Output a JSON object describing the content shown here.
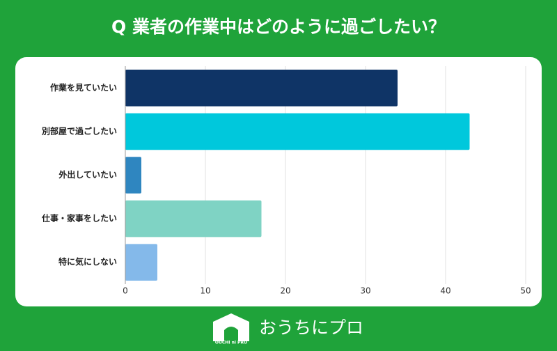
{
  "chart_data": {
    "type": "barh",
    "title": "Q 業者の作業中はどのように過ごしたい？",
    "categories": [
      "作業を見ていたい",
      "別部屋で過ごしたい",
      "外出していたい",
      "仕事・家事をしたい",
      "特に気にしない"
    ],
    "values": [
      34,
      43,
      2,
      17,
      4
    ],
    "colors": [
      "#0f3466",
      "#00c8dc",
      "#2f86c0",
      "#7fd3c4",
      "#84b9ea"
    ],
    "xlim": [
      0,
      50
    ],
    "xticks": [
      0,
      10,
      20,
      30,
      40,
      50
    ],
    "grid": true
  },
  "logo": {
    "name": "おうちにプロ",
    "mark": "OUCHI ni PRO"
  }
}
